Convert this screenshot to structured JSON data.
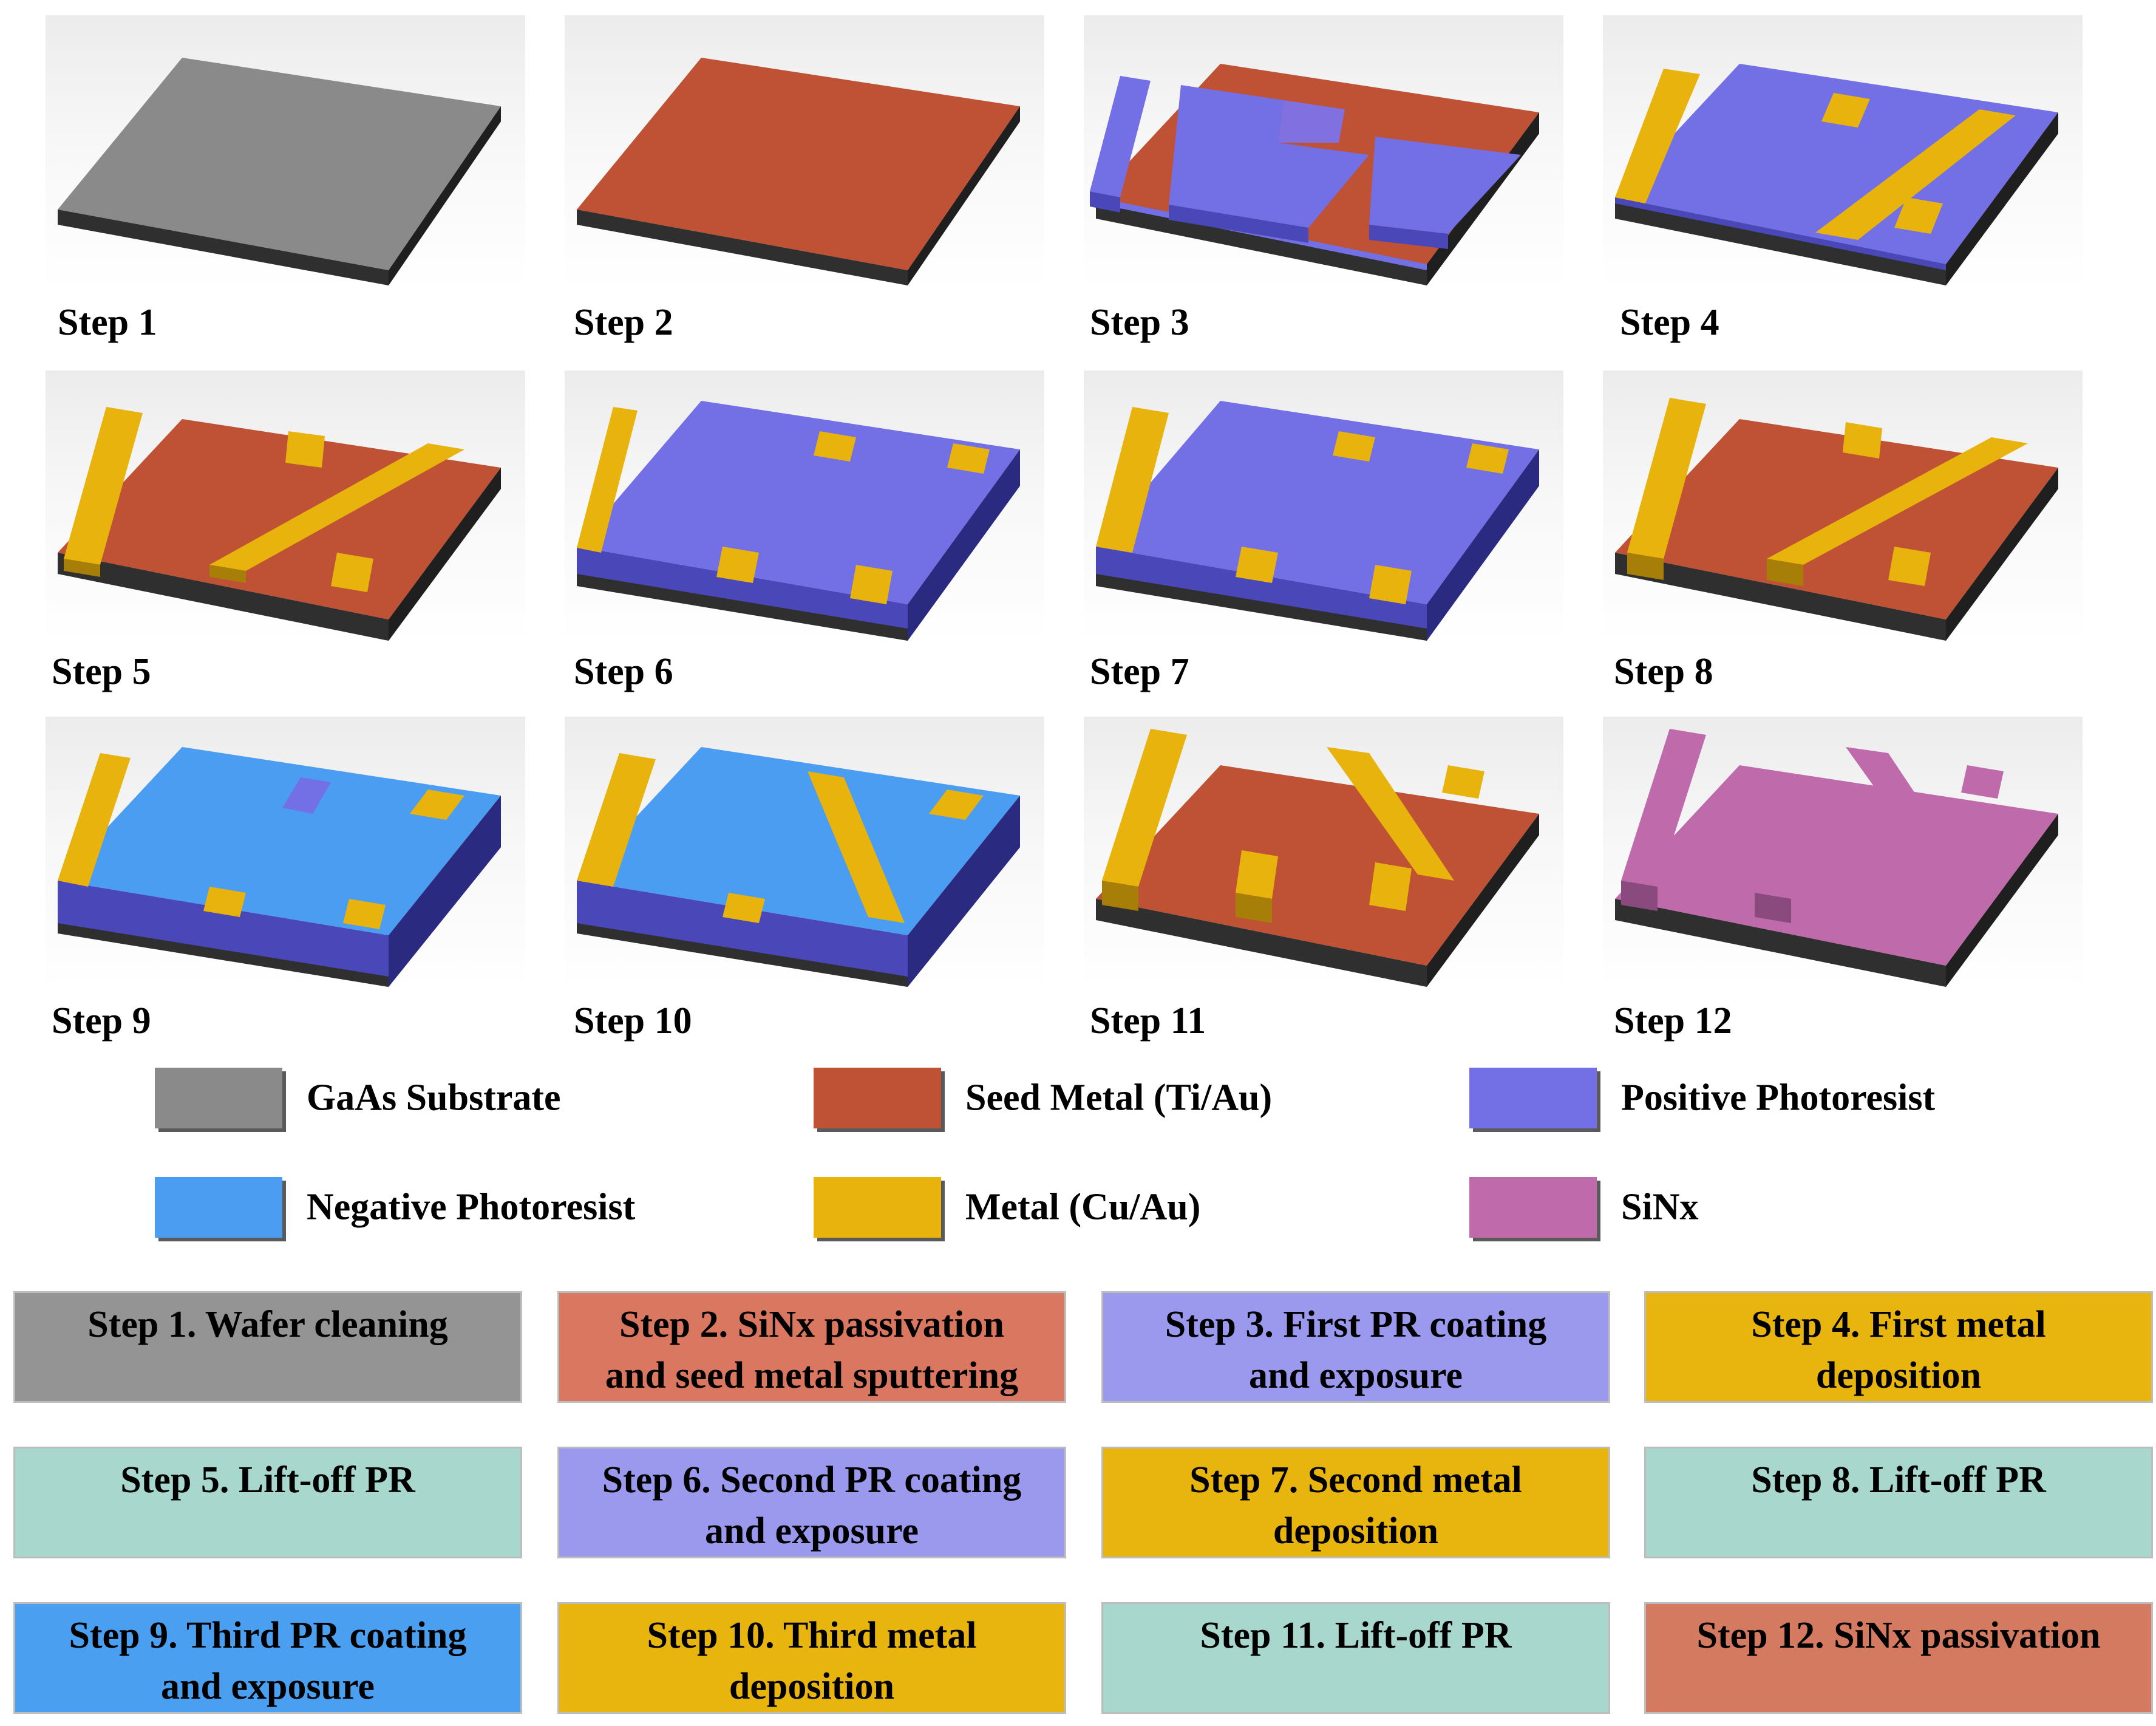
{
  "colors": {
    "gaas": "#8a8a8a",
    "seed": "#bf5235",
    "positive_pr": "#7370e6",
    "negative_pr": "#4a9df0",
    "metal": "#e8b30c",
    "sinx": "#be6aab",
    "box_gray": "#949494",
    "box_salmon": "#d97760",
    "box_lavender": "#9a99ee",
    "box_gold": "#e8b50e",
    "box_mint": "#a8d7cd",
    "box_blue": "#4b9ff0",
    "box_rose": "#d47a60"
  },
  "steps": [
    {
      "label": "Step 1"
    },
    {
      "label": "Step 2"
    },
    {
      "label": "Step 3"
    },
    {
      "label": "Step 4"
    },
    {
      "label": "Step 5"
    },
    {
      "label": "Step 6"
    },
    {
      "label": "Step 7"
    },
    {
      "label": "Step 8"
    },
    {
      "label": "Step 9"
    },
    {
      "label": "Step 10"
    },
    {
      "label": "Step 11"
    },
    {
      "label": "Step 12"
    }
  ],
  "legend": [
    {
      "label": "GaAs Substrate",
      "color": "#8a8a8a"
    },
    {
      "label": "Seed Metal (Ti/Au)",
      "color": "#bf5235"
    },
    {
      "label": "Positive Photoresist",
      "color": "#7370e6"
    },
    {
      "label": "Negative Photoresist",
      "color": "#4a9df0"
    },
    {
      "label": "Metal (Cu/Au)",
      "color": "#e8b30c"
    },
    {
      "label": "SiNx",
      "color": "#be6aab"
    }
  ],
  "descriptions": [
    {
      "line1": "Step 1. Wafer cleaning",
      "line2": "",
      "color": "#949494"
    },
    {
      "line1": "Step 2. SiNx passivation",
      "line2": "and seed metal sputtering",
      "color": "#d97760"
    },
    {
      "line1": "Step 3. First PR coating",
      "line2": "and exposure",
      "color": "#9a99ee"
    },
    {
      "line1": "Step 4. First metal",
      "line2": "deposition",
      "color": "#e8b50e"
    },
    {
      "line1": "Step 5. Lift-off PR",
      "line2": "",
      "color": "#a8d7cd"
    },
    {
      "line1": "Step 6. Second PR coating",
      "line2": "and exposure",
      "color": "#9a99ee"
    },
    {
      "line1": "Step 7. Second metal",
      "line2": "deposition",
      "color": "#e8b50e"
    },
    {
      "line1": "Step 8. Lift-off PR",
      "line2": "",
      "color": "#a8d7cd"
    },
    {
      "line1": "Step 9. Third PR coating",
      "line2": "and exposure",
      "color": "#4b9ff0"
    },
    {
      "line1": "Step 10. Third metal",
      "line2": "deposition",
      "color": "#e8b50e"
    },
    {
      "line1": "Step 11. Lift-off PR",
      "line2": "",
      "color": "#a8d7cd"
    },
    {
      "line1": "Step 12. SiNx passivation",
      "line2": "",
      "color": "#d47a60"
    }
  ]
}
